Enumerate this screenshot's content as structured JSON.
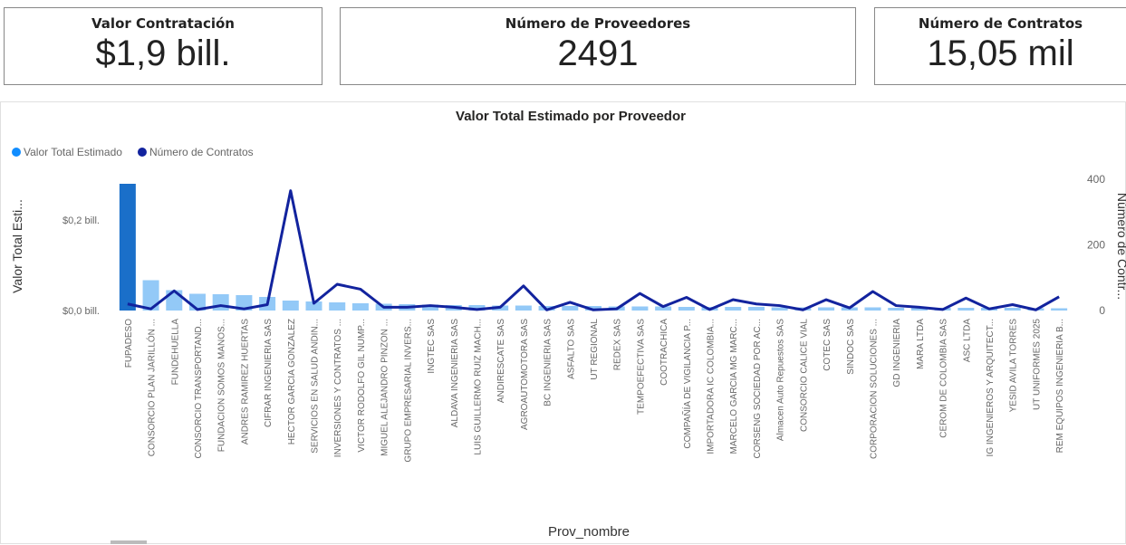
{
  "cards": [
    {
      "title": "Valor Contratación",
      "value": "$1,9 bill."
    },
    {
      "title": "Número de Proveedores",
      "value": 2491
    },
    {
      "title": "Número de Contratos",
      "value": "15,05 mil"
    }
  ],
  "chart_data": {
    "type": "bar_line",
    "title": "Valor Total Estimado por Proveedor",
    "x_label": "Prov_nombre",
    "y_label": "Valor Total Esti...",
    "y2_label": "Número de Contr...",
    "categories": [
      "FUPADESO",
      "CONSORCIO PLAN JARILLÓN ...",
      "FUNDEHUELLA",
      "CONSORCIO TRANSPORTAND...",
      "FUNDACION SOMOS MANOS...",
      "ANDRES RAMIREZ HUERTAS",
      "CIFRAR INGENIERIA SAS",
      "HECTOR GARCIA GONZALEZ",
      "SERVICIOS EN SALUD ANDIN...",
      "INVERSIONES Y CONTRATOS ...",
      "VICTOR RODOLFO GIL NUMP...",
      "MIGUEL ALEJANDRO PINZON ...",
      "GRUPO EMPRESARIAL INVERS...",
      "INGTEC SAS",
      "ALDAVA INGENIERIA SAS",
      "LUIS GUILLERMO RUIZ MACH...",
      "ANDIRESCATE SAS",
      "AGROAUTOMOTORA SAS",
      "BC INGENIERIA SAS",
      "ASFALTO SAS",
      "UT REGIONAL",
      "REDEX SAS",
      "TEMPOEFECTIVA SAS",
      "COOTRACHICA",
      "COMPAÑÍA DE VIGILANCIA P...",
      "IMPORTADORA IC COLOMBIA...",
      "MARCELO GARCIA MG MARC...",
      "CORSENG SOCIEDAD POR AC...",
      "Almacen Auto Repuestos SAS",
      "CONSORCIO CALICE VIAL",
      "COTEC SAS",
      "SINDOC SAS",
      "CORPORACION SOLUCIONES ...",
      "GD INGENIERIA",
      "MARA LTDA",
      "CEROM DE COLOMBIA SAS",
      "ASC LTDA",
      "IG INGENIEROS Y ARQUITECT...",
      "YESID AVILA TORRES",
      "UT UNIFORMES 2025",
      "REM EQUIPOS INGENIERIA B..."
    ],
    "series": [
      {
        "name": "Valor Total Estimado",
        "color": "#118dff",
        "bar_colors": [
          "#1a6fc9",
          "#93c9f7"
        ],
        "values": [
          0.28,
          0.067,
          0.045,
          0.037,
          0.036,
          0.034,
          0.03,
          0.022,
          0.02,
          0.018,
          0.016,
          0.015,
          0.014,
          0.013,
          0.012,
          0.012,
          0.011,
          0.011,
          0.01,
          0.01,
          0.01,
          0.009,
          0.009,
          0.009,
          0.008,
          0.008,
          0.008,
          0.008,
          0.007,
          0.007,
          0.007,
          0.007,
          0.007,
          0.006,
          0.006,
          0.006,
          0.006,
          0.006,
          0.006,
          0.005,
          0.005
        ]
      },
      {
        "name": "Número de Contratos",
        "color": "#12239e",
        "axis": "y2",
        "values": [
          20,
          5,
          60,
          3,
          15,
          5,
          18,
          365,
          22,
          80,
          65,
          10,
          10,
          15,
          10,
          3,
          10,
          75,
          2,
          25,
          2,
          5,
          52,
          12,
          40,
          3,
          33,
          20,
          15,
          2,
          33,
          8,
          58,
          15,
          10,
          3,
          38,
          5,
          18,
          2,
          42
        ]
      }
    ],
    "ylim": [
      0,
      0.29
    ],
    "yticks": [
      {
        "value": 0,
        "label": "$0,0 bill."
      },
      {
        "value": 0.2,
        "label": "$0,2 bill."
      }
    ],
    "y2lim": [
      0,
      400
    ],
    "y2ticks": [
      0,
      200,
      400
    ],
    "legend": "top-left"
  }
}
